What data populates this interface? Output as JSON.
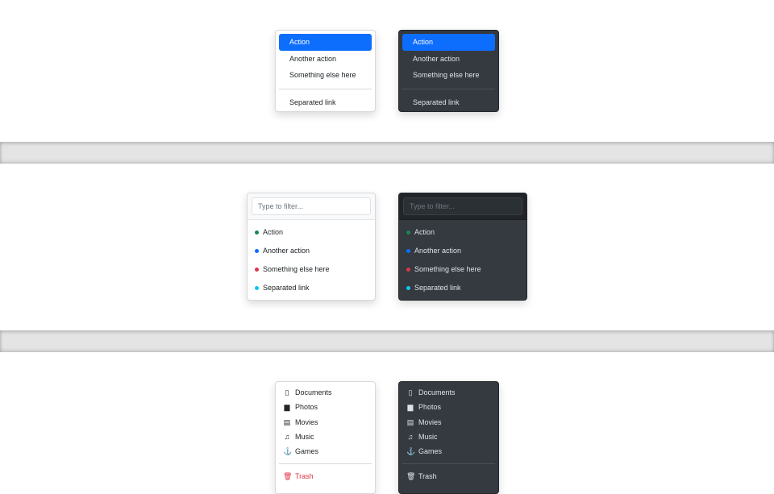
{
  "basic_menu": {
    "items": [
      "Action",
      "Another action",
      "Something else here"
    ],
    "separated": "Separated link",
    "active_index": 0
  },
  "filter_menu": {
    "placeholder": "Type to filter...",
    "items": [
      {
        "label": "Action",
        "color": "#198754"
      },
      {
        "label": "Another action",
        "color": "#0d6efd"
      },
      {
        "label": "Something else here",
        "color": "#dc3545"
      },
      {
        "label": "Separated link",
        "color": "#0dcaf0"
      }
    ]
  },
  "icon_menu": {
    "items": [
      {
        "label": "Documents",
        "icon": "file-icon"
      },
      {
        "label": "Photos",
        "icon": "image-icon"
      },
      {
        "label": "Movies",
        "icon": "film-icon"
      },
      {
        "label": "Music",
        "icon": "music-note-icon"
      },
      {
        "label": "Games",
        "icon": "joystick-icon"
      }
    ],
    "trash": {
      "label": "Trash",
      "icon": "trash-icon",
      "color": "#dc3545"
    }
  },
  "accent": "#0d6efd"
}
